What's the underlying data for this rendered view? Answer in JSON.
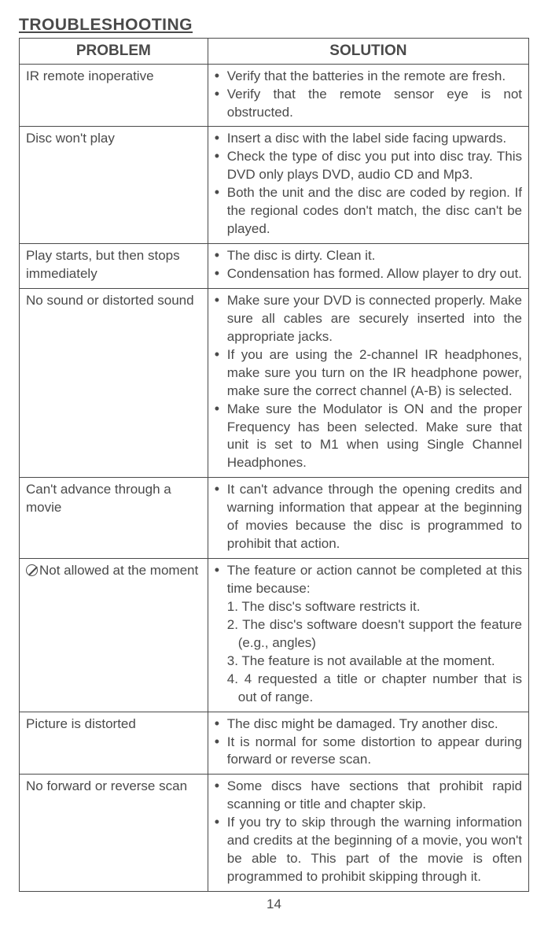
{
  "title": "TROUBLESHOOTING",
  "headers": {
    "problem": "PROBLEM",
    "solution": "SOLUTION"
  },
  "page_number": "14",
  "rows": [
    {
      "problem": "IR remote inoperative",
      "solutions": [
        "Verify that the batteries in the remote are fresh.",
        "Verify that the remote sensor eye is not obstructed."
      ]
    },
    {
      "problem": "Disc won't play",
      "solutions": [
        "Insert a disc with the label side facing upwards.",
        "Check the type of disc you put into disc tray. This DVD only plays DVD, audio CD and Mp3.",
        "Both the unit and the disc are coded by region. If the regional codes don't match, the disc can't be played."
      ]
    },
    {
      "problem": "Play starts, but then stops immediately",
      "solutions": [
        "The disc is dirty. Clean it.",
        "Condensation has formed. Allow player to dry out."
      ]
    },
    {
      "problem": "No sound or distorted sound",
      "solutions": [
        "Make sure your DVD is connected properly. Make sure all cables are securely inserted into the appropriate jacks.",
        "If you are using the 2-channel IR headphones, make sure you turn on the IR headphone power, make sure the correct channel (A-B) is selected.",
        "Make sure the Modulator is ON and the proper Frequency has been selected. Make sure that unit is set to M1 when using Single Channel Headphones."
      ]
    },
    {
      "problem": "Can't advance through a movie",
      "solutions": [
        "It can't advance through the opening credits and warning information that appear at the beginning of movies because the disc is programmed to prohibit that action."
      ]
    },
    {
      "problem_icon": "prohibit",
      "problem": "Not allowed at the moment",
      "intro": "The feature or action cannot be completed at this time because:",
      "numbered": [
        "1. The disc's software restricts it.",
        "2. The disc's software doesn't support the feature (e.g., angles)",
        "3. The feature is not available at the moment.",
        "4. 4 requested a title or chapter number that is out of range."
      ]
    },
    {
      "problem": "Picture is distorted",
      "solutions": [
        "The disc might be damaged. Try another disc.",
        "It is normal for some distortion to appear during forward or reverse scan."
      ]
    },
    {
      "problem": "No forward or reverse scan",
      "solutions": [
        "Some discs have sections that prohibit rapid scanning or title and chapter skip.",
        "If you try to skip through the warning information and credits at the beginning of a movie, you won't be able to. This part of the movie is often programmed to prohibit skipping through it."
      ]
    }
  ]
}
